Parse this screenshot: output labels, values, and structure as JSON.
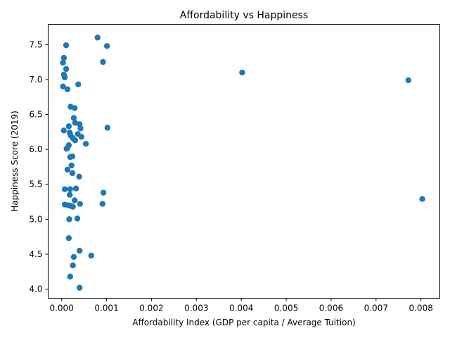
{
  "chart_data": {
    "type": "scatter",
    "title": "Affordability vs Happiness",
    "xlabel": "Affordability Index (GDP per capita / Average Tuition)",
    "ylabel": "Happiness Score (2019)",
    "xlim": [
      -0.0003,
      0.00842
    ],
    "ylim": [
      3.87,
      7.79
    ],
    "xticks": [
      0.0,
      0.001,
      0.002,
      0.003,
      0.004,
      0.005,
      0.006,
      0.007,
      0.008
    ],
    "xtick_labels": [
      "0.000",
      "0.001",
      "0.002",
      "0.003",
      "0.004",
      "0.005",
      "0.006",
      "0.007",
      "0.008"
    ],
    "yticks": [
      4.0,
      4.5,
      5.0,
      5.5,
      6.0,
      6.5,
      7.0,
      7.5
    ],
    "ytick_labels": [
      "4.0",
      "4.5",
      "5.0",
      "5.5",
      "6.0",
      "6.5",
      "7.0",
      "7.5"
    ],
    "grid": false,
    "marker_color": "#1f77b4",
    "series": [
      {
        "points": [
          [
            0.0008,
            7.6
          ],
          [
            0.0001,
            7.49
          ],
          [
            0.00101,
            7.48
          ],
          [
            5e-05,
            7.31
          ],
          [
            3e-05,
            7.24
          ],
          [
            0.00092,
            7.25
          ],
          [
            0.0001,
            7.15
          ],
          [
            0.00402,
            7.1
          ],
          [
            5e-05,
            7.07
          ],
          [
            7e-05,
            7.03
          ],
          [
            0.00772,
            6.99
          ],
          [
            0.00037,
            6.93
          ],
          [
            3e-05,
            6.9
          ],
          [
            0.00013,
            6.86
          ],
          [
            0.0002,
            6.61
          ],
          [
            0.00029,
            6.59
          ],
          [
            0.00027,
            6.45
          ],
          [
            0.0003,
            6.38
          ],
          [
            0.0004,
            6.36
          ],
          [
            0.00102,
            6.31
          ],
          [
            0.00016,
            6.33
          ],
          [
            0.00042,
            6.3
          ],
          [
            5e-05,
            6.27
          ],
          [
            0.00018,
            6.24
          ],
          [
            0.0002,
            6.2
          ],
          [
            0.00036,
            6.22
          ],
          [
            0.00044,
            6.18
          ],
          [
            0.00025,
            6.16
          ],
          [
            0.0003,
            6.13
          ],
          [
            0.00054,
            6.08
          ],
          [
            0.00016,
            6.06
          ],
          [
            0.00013,
            6.02
          ],
          [
            0.00011,
            6.01
          ],
          [
            0.00024,
            5.9
          ],
          [
            0.00019,
            5.89
          ],
          [
            0.00022,
            5.77
          ],
          [
            0.00013,
            5.71
          ],
          [
            0.00024,
            5.66
          ],
          [
            0.00039,
            5.61
          ],
          [
            7e-05,
            5.43
          ],
          [
            0.00019,
            5.43
          ],
          [
            0.00032,
            5.44
          ],
          [
            0.00093,
            5.38
          ],
          [
            0.00018,
            5.35
          ],
          [
            0.00803,
            5.29
          ],
          [
            0.00029,
            5.27
          ],
          [
            7e-05,
            5.21
          ],
          [
            0.00015,
            5.2
          ],
          [
            0.00041,
            5.22
          ],
          [
            0.00091,
            5.22
          ],
          [
            0.00021,
            5.19
          ],
          [
            0.00025,
            5.18
          ],
          [
            0.00035,
            5.01
          ],
          [
            0.00017,
            5.0
          ],
          [
            0.00016,
            4.73
          ],
          [
            0.0004,
            4.55
          ],
          [
            0.00066,
            4.48
          ],
          [
            0.00027,
            4.46
          ],
          [
            0.00025,
            4.34
          ],
          [
            0.00019,
            4.18
          ],
          [
            0.0004,
            4.02
          ]
        ]
      }
    ]
  }
}
